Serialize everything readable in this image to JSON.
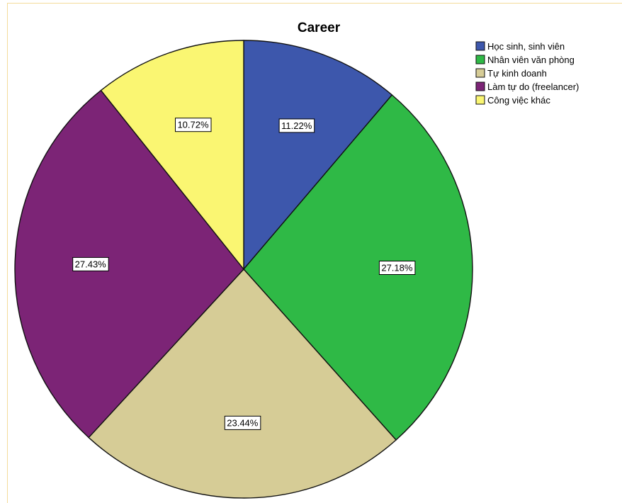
{
  "chart_data": {
    "type": "pie",
    "title": "Career",
    "categories": [
      "Học sinh, sinh viên",
      "Nhân viên văn phòng",
      "Tự kinh doanh",
      "Làm tự do (freelancer)",
      "Công việc khác"
    ],
    "values": [
      11.22,
      27.18,
      23.44,
      27.43,
      10.72
    ],
    "labels": [
      "11.22%",
      "27.18%",
      "23.44%",
      "27.43%",
      "10.72%"
    ],
    "colors": [
      "#3d57ac",
      "#2fb946",
      "#d6cc96",
      "#7c2476",
      "#faf672"
    ],
    "start_angle": "12 o'clock",
    "direction": "clockwise",
    "legend_position": "top-right"
  }
}
